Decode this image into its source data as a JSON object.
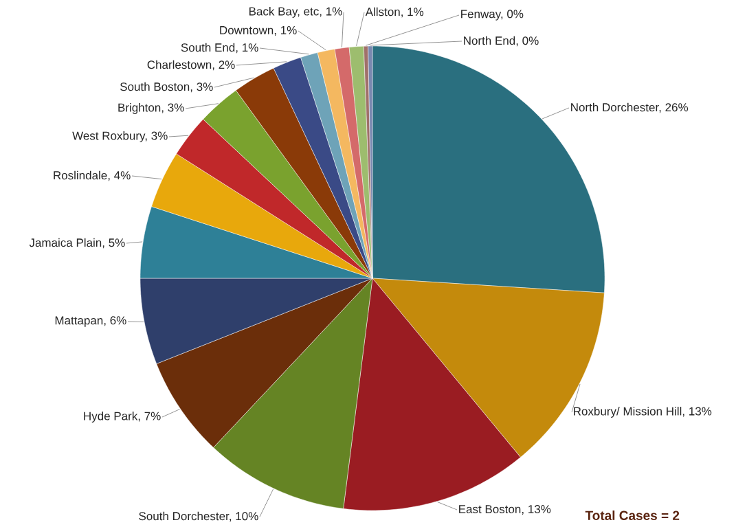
{
  "chart_data": {
    "type": "pie",
    "categories": [
      "North Dorchester, 26%",
      "Roxbury/ Mission Hill, 13%",
      "East Boston, 13%",
      "South Dorchester, 10%",
      "Hyde Park, 7%",
      "Mattapan, 6%",
      "Jamaica Plain, 5%",
      "Roslindale, 4%",
      "West Roxbury, 3%",
      "Brighton, 3%",
      "South Boston, 3%",
      "Charlestown, 2%",
      "South End, 1%",
      "Downtown, 1%",
      "Back Bay, etc, 1%",
      "Allston, 1%",
      "Fenway, 0%",
      "North End, 0%"
    ],
    "values": [
      26,
      13,
      13,
      10,
      7,
      6,
      5,
      4,
      3,
      3,
      3,
      2,
      1.2,
      1.2,
      1,
      1,
      0.3,
      0.3
    ],
    "colors": [
      "#2a6f7f",
      "#c48a0c",
      "#9a1c22",
      "#658424",
      "#6b2e0a",
      "#2f3f6b",
      "#2e8097",
      "#e8a80c",
      "#c0282a",
      "#7aa22e",
      "#8a3a08",
      "#3a4a86",
      "#6ea3b8",
      "#f4b860",
      "#d46a6a",
      "#9dbd6e",
      "#a0706a",
      "#7a88b0"
    ],
    "annotations": [
      "Total Cases = 2"
    ]
  }
}
